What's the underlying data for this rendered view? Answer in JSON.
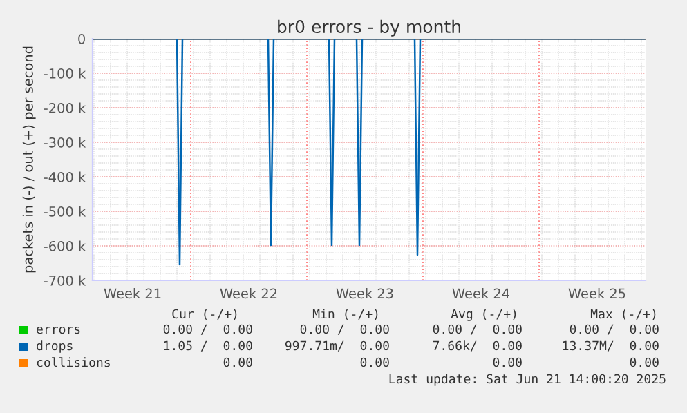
{
  "chart_data": {
    "type": "line",
    "title": "br0 errors - by month",
    "ylabel": "packets in (-) / out (+) per second",
    "categories": [
      null,
      null,
      null,
      null,
      null,
      null,
      null,
      null,
      null,
      null,
      null,
      null,
      null,
      null,
      "Week 21",
      null,
      null,
      null,
      null,
      null,
      null,
      null,
      null,
      null,
      null,
      null,
      null,
      null,
      null,
      null,
      null,
      null,
      null,
      null,
      null,
      null,
      null,
      null,
      null,
      null,
      null,
      null,
      null,
      null,
      null,
      null,
      null,
      null,
      null,
      null,
      null,
      null,
      null,
      null,
      null,
      null,
      "Week 22",
      null,
      null,
      null,
      null,
      null,
      null,
      null,
      null,
      null,
      null,
      null,
      null,
      null,
      null,
      null,
      null,
      null,
      null,
      null,
      null,
      null,
      null,
      null,
      null,
      null,
      null,
      null,
      null,
      null,
      null,
      null,
      null,
      null,
      null,
      null,
      null,
      null,
      null,
      null,
      null,
      null,
      "Week 23",
      null,
      null,
      null,
      null,
      null,
      null,
      null,
      null,
      null,
      null,
      null,
      null,
      null,
      null,
      null,
      null,
      null,
      null,
      null,
      null,
      null,
      null,
      null,
      null,
      null,
      null,
      null,
      null,
      null,
      null,
      null,
      null,
      null,
      null,
      null,
      null,
      null,
      null,
      null,
      null,
      null,
      "Week 24",
      null,
      null,
      null,
      null,
      null,
      null,
      null,
      null,
      null,
      null,
      null,
      null,
      null,
      null,
      null,
      null,
      null,
      null,
      null,
      null,
      null,
      null,
      null,
      null,
      null,
      null,
      null,
      null,
      null,
      null,
      null,
      null,
      null,
      null,
      null,
      null,
      null,
      null,
      null,
      null,
      null,
      "Week 25",
      null,
      null,
      null,
      null,
      null,
      null,
      null,
      null,
      null,
      null,
      null,
      null,
      null,
      null,
      null,
      null,
      null
    ],
    "ylim": [
      -700000,
      0
    ],
    "yticks": [
      {
        "value": 0,
        "label": "0"
      },
      {
        "value": -100000,
        "label": "-100 k"
      },
      {
        "value": -200000,
        "label": "-200 k"
      },
      {
        "value": -300000,
        "label": "-300 k"
      },
      {
        "value": -400000,
        "label": "-400 k"
      },
      {
        "value": -500000,
        "label": "-500 k"
      },
      {
        "value": -600000,
        "label": "-600 k"
      },
      {
        "value": -700000,
        "label": "-700 k"
      }
    ],
    "grid": true,
    "legend": "bottom left",
    "ref_lines": [
      {
        "axis": "y",
        "value": 0,
        "color": "#000000"
      }
    ],
    "series": [
      {
        "name": "errors",
        "color": "#00cc00",
        "values": [
          null,
          null,
          null,
          null,
          null,
          null,
          null,
          null,
          null,
          null,
          null,
          null,
          null,
          null,
          null,
          null,
          null,
          null,
          null,
          null,
          null,
          null,
          null,
          null,
          null,
          null,
          null,
          null,
          null,
          null,
          null,
          null,
          null,
          null,
          null,
          null,
          null,
          null,
          null,
          null,
          null,
          null,
          null,
          null,
          null,
          null,
          null,
          null,
          null,
          null,
          null,
          null,
          null,
          null,
          null,
          null,
          null,
          null,
          null,
          null,
          null,
          null,
          null,
          null,
          null,
          null,
          null,
          null,
          null,
          null,
          null,
          null,
          null,
          null,
          null,
          null,
          null,
          null,
          null,
          null,
          null,
          null,
          null,
          null,
          null,
          null,
          null,
          null,
          null,
          null,
          null,
          null,
          null,
          null,
          null,
          null,
          null,
          null,
          null,
          null,
          null,
          null,
          null,
          null,
          null,
          null,
          null,
          null,
          null,
          null,
          null,
          null,
          null,
          null,
          null,
          null,
          null,
          null,
          null,
          null,
          null,
          null,
          null,
          null,
          null,
          null,
          null,
          null,
          null,
          null,
          null,
          null,
          null,
          null,
          null,
          null,
          null,
          null,
          null,
          null,
          null,
          null,
          null,
          null,
          null,
          null,
          null,
          null,
          null,
          null,
          null,
          null,
          null,
          null,
          null,
          null,
          null,
          null,
          null,
          null,
          null,
          null,
          null,
          null,
          null,
          null,
          null,
          null,
          null,
          null,
          null,
          null,
          null,
          null,
          null,
          null,
          null,
          null,
          null,
          null,
          null,
          null,
          null,
          null,
          null,
          null,
          null,
          null,
          null,
          null,
          null,
          null,
          null,
          null,
          null,
          null,
          null,
          null,
          null,
          null
        ]
      },
      {
        "name": "drops",
        "color": "#0066b3",
        "values": [
          0,
          0,
          0,
          0,
          0,
          0,
          0,
          0,
          0,
          0,
          0,
          0,
          0,
          0,
          0,
          0,
          0,
          0,
          0,
          0,
          0,
          0,
          0,
          0,
          0,
          0,
          0,
          0,
          0,
          0,
          0,
          -654000,
          0,
          0,
          0,
          0,
          0,
          0,
          0,
          0,
          0,
          0,
          0,
          0,
          0,
          0,
          0,
          0,
          0,
          0,
          0,
          0,
          0,
          0,
          0,
          0,
          0,
          0,
          0,
          0,
          0,
          0,
          0,
          0,
          -598000,
          0,
          0,
          0,
          0,
          0,
          0,
          0,
          0,
          0,
          0,
          0,
          0,
          0,
          0,
          0,
          0,
          0,
          0,
          0,
          0,
          0,
          -598000,
          0,
          0,
          0,
          0,
          0,
          0,
          0,
          0,
          0,
          -598000,
          0,
          0,
          0,
          0,
          0,
          0,
          0,
          0,
          0,
          0,
          0,
          0,
          0,
          0,
          0,
          0,
          0,
          0,
          0,
          0,
          -626000,
          0,
          0,
          0,
          0,
          0,
          0,
          0,
          0,
          0,
          0,
          0,
          0,
          0,
          0,
          0,
          0,
          0,
          0,
          0,
          0,
          0,
          0,
          0,
          0,
          0,
          0,
          0,
          0,
          0,
          0,
          0,
          0,
          0,
          0,
          0,
          0,
          0,
          0,
          0,
          0,
          0,
          0,
          0,
          0,
          0,
          0,
          0,
          0,
          0,
          0,
          0,
          0,
          0,
          0,
          0,
          0,
          0,
          0,
          0,
          0,
          0,
          0,
          0,
          0,
          0,
          0,
          0,
          0,
          0,
          0,
          0,
          0,
          0,
          0,
          0,
          0,
          0,
          0,
          0,
          0,
          0,
          0
        ]
      },
      {
        "name": "collisions",
        "color": "#ff7f00",
        "values": [
          null,
          null,
          null,
          null,
          null,
          null,
          null,
          null,
          null,
          null,
          null,
          null,
          null,
          null,
          null,
          null,
          null,
          null,
          null,
          null,
          null,
          null,
          null,
          null,
          null,
          null,
          null,
          null,
          null,
          null,
          null,
          null,
          null,
          null,
          null,
          null,
          null,
          null,
          null,
          null,
          null,
          null,
          null,
          null,
          null,
          null,
          null,
          null,
          null,
          null,
          null,
          null,
          null,
          null,
          null,
          null,
          null,
          null,
          null,
          null,
          null,
          null,
          null,
          null,
          null,
          null,
          null,
          null,
          null,
          null,
          null,
          null,
          null,
          null,
          null,
          null,
          null,
          null,
          null,
          null,
          null,
          null,
          null,
          null,
          null,
          null,
          null,
          null,
          null,
          null,
          null,
          null,
          null,
          null,
          null,
          null,
          null,
          null,
          null,
          null,
          null,
          null,
          null,
          null,
          null,
          null,
          null,
          null,
          null,
          null,
          null,
          null,
          null,
          null,
          null,
          null,
          null,
          null,
          null,
          null,
          null,
          null,
          null,
          null,
          null,
          null,
          null,
          null,
          null,
          null,
          null,
          null,
          null,
          null,
          null,
          null,
          null,
          null,
          null,
          null,
          null,
          null,
          null,
          null,
          null,
          null,
          null,
          null,
          null,
          null,
          null,
          null,
          null,
          null,
          null,
          null,
          null,
          null,
          null,
          null,
          null,
          null,
          null,
          null,
          null,
          null,
          null,
          null,
          null,
          null,
          null,
          null,
          null,
          null,
          null,
          null,
          null,
          null,
          null,
          null,
          null,
          null,
          null,
          null,
          null,
          null,
          null,
          null,
          null,
          null,
          null,
          null,
          null,
          null,
          null,
          null,
          null,
          null,
          null,
          null
        ]
      }
    ],
    "annotations": [
      "Cur (-/+)",
      "Min (-/+)",
      "Avg (-/+)",
      "Max (-/+)",
      "0.00 /  0.00",
      "0.00 /  0.00",
      "0.00 /  0.00",
      "0.00 /  0.00",
      "1.05 /  0.00",
      "997.71m/  0.00",
      "7.66k/  0.00",
      "13.37M/  0.00",
      "0.00",
      "0.00",
      "0.00",
      "0.00",
      "Last update: Sat Jun 21 14:00:20 2025"
    ]
  }
}
